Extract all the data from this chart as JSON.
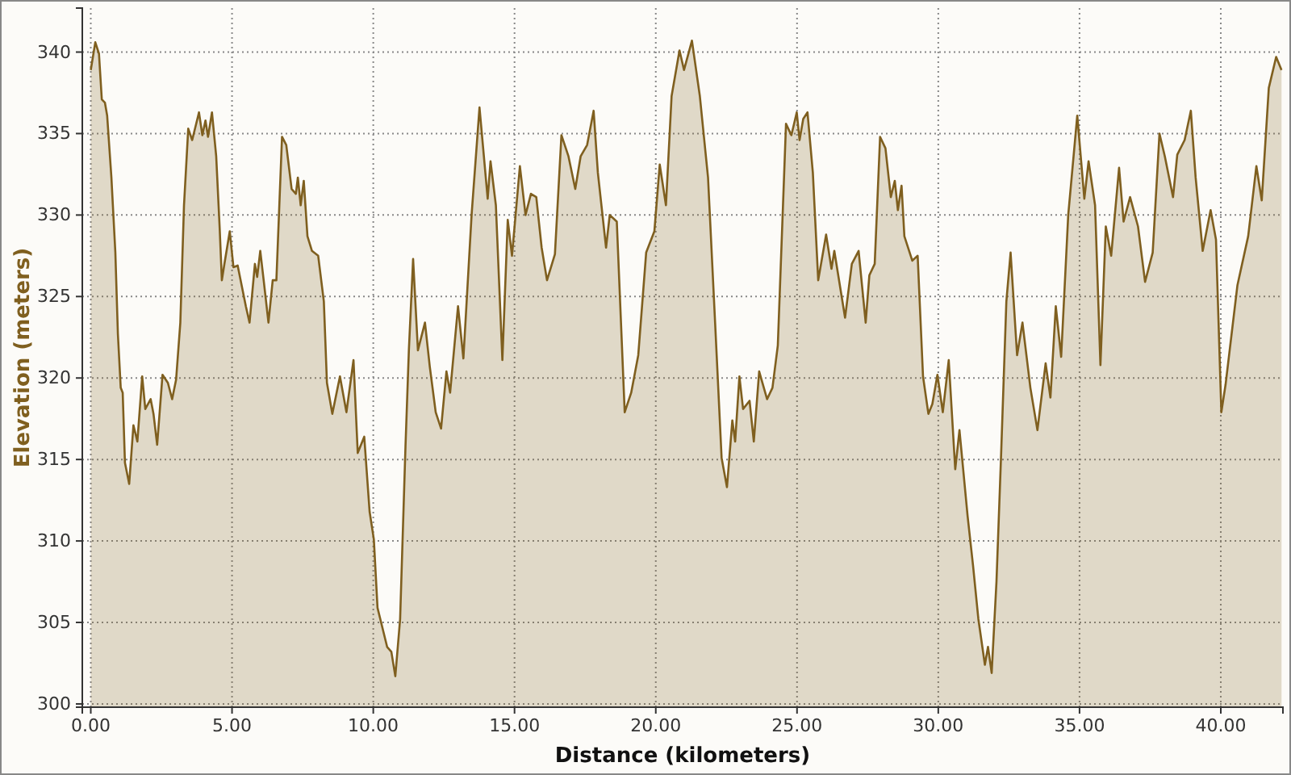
{
  "chart_data": {
    "type": "area",
    "xlabel": "Distance (kilometers)",
    "ylabel": "Elevation (meters)",
    "xlim": [
      -0.3,
      42.2
    ],
    "ylim": [
      299.8,
      342.7
    ],
    "xticks": [
      {
        "value": 0,
        "label": "0.00"
      },
      {
        "value": 5,
        "label": "5.00"
      },
      {
        "value": 10,
        "label": "10.00"
      },
      {
        "value": 15,
        "label": "15.00"
      },
      {
        "value": 20,
        "label": "20.00"
      },
      {
        "value": 25,
        "label": "25.00"
      },
      {
        "value": 30,
        "label": "30.00"
      },
      {
        "value": 35,
        "label": "35.00"
      },
      {
        "value": 40,
        "label": "40.00"
      }
    ],
    "yticks": [
      300,
      305,
      310,
      315,
      320,
      325,
      330,
      335,
      340
    ],
    "grid": true,
    "line_style": "solid",
    "series": [
      {
        "color": "#7f5f1f",
        "x": [
          0.0,
          0.16,
          0.29,
          0.39,
          0.5,
          0.58,
          0.73,
          0.87,
          0.96,
          1.06,
          1.13,
          1.21,
          1.36,
          1.51,
          1.65,
          1.82,
          1.93,
          2.12,
          2.22,
          2.35,
          2.54,
          2.73,
          2.88,
          3.02,
          3.17,
          3.3,
          3.45,
          3.59,
          3.83,
          3.95,
          4.06,
          4.15,
          4.29,
          4.44,
          4.56,
          4.64,
          4.73,
          4.92,
          5.05,
          5.2,
          5.49,
          5.62,
          5.81,
          5.89,
          6.0,
          6.12,
          6.29,
          6.44,
          6.57,
          6.77,
          6.92,
          7.11,
          7.26,
          7.33,
          7.43,
          7.54,
          7.67,
          7.83,
          8.05,
          8.25,
          8.36,
          8.55,
          8.82,
          9.05,
          9.3,
          9.45,
          9.68,
          9.87,
          10.02,
          10.15,
          10.49,
          10.64,
          10.78,
          10.95,
          11.14,
          11.26,
          11.41,
          11.58,
          11.83,
          12.0,
          12.21,
          12.4,
          12.59,
          12.72,
          13.0,
          13.19,
          13.48,
          13.76,
          14.05,
          14.15,
          14.34,
          14.57,
          14.76,
          14.91,
          15.19,
          15.39,
          15.58,
          15.77,
          15.96,
          16.15,
          16.43,
          16.66,
          16.91,
          17.15,
          17.34,
          17.57,
          17.8,
          17.95,
          18.24,
          18.37,
          18.62,
          18.9,
          19.13,
          19.38,
          19.66,
          19.95,
          20.14,
          20.36,
          20.56,
          20.84,
          21.0,
          21.28,
          21.56,
          21.85,
          22.1,
          22.33,
          22.52,
          22.71,
          22.81,
          22.96,
          23.09,
          23.32,
          23.47,
          23.66,
          23.94,
          24.13,
          24.32,
          24.61,
          24.8,
          24.99,
          25.09,
          25.22,
          25.37,
          25.56,
          25.75,
          26.03,
          26.22,
          26.32,
          26.7,
          26.94,
          27.18,
          27.43,
          27.56,
          27.75,
          27.94,
          28.13,
          28.32,
          28.46,
          28.57,
          28.7,
          28.8,
          29.08,
          29.27,
          29.46,
          29.65,
          29.79,
          29.97,
          30.16,
          30.37,
          30.6,
          30.75,
          31.04,
          31.23,
          31.42,
          31.65,
          31.76,
          31.89,
          32.06,
          32.22,
          32.41,
          32.56,
          32.79,
          32.98,
          33.26,
          33.51,
          33.8,
          33.97,
          34.16,
          34.35,
          34.6,
          34.92,
          35.17,
          35.32,
          35.55,
          35.74,
          35.93,
          36.12,
          36.4,
          36.56,
          36.79,
          37.07,
          37.32,
          37.59,
          37.83,
          38.02,
          38.31,
          38.46,
          38.72,
          38.94,
          39.11,
          39.36,
          39.64,
          39.83,
          40.02,
          40.17,
          40.59,
          40.97,
          41.26,
          41.45,
          41.7,
          41.96,
          42.15
        ],
        "values": [
          338.9,
          340.6,
          339.9,
          337.1,
          336.9,
          336.1,
          332.3,
          327.7,
          322.7,
          319.4,
          319.1,
          314.8,
          313.5,
          317.1,
          316.1,
          320.1,
          318.1,
          318.7,
          317.8,
          315.9,
          320.2,
          319.7,
          318.7,
          319.9,
          323.4,
          330.6,
          335.3,
          334.6,
          336.3,
          334.9,
          335.8,
          334.8,
          336.3,
          333.6,
          329.3,
          326.0,
          327.0,
          329.0,
          326.8,
          326.9,
          324.4,
          323.4,
          327.0,
          326.2,
          327.8,
          326.0,
          323.4,
          326.0,
          326.0,
          334.8,
          334.3,
          331.6,
          331.3,
          332.3,
          330.6,
          332.1,
          328.7,
          327.8,
          327.5,
          324.7,
          319.7,
          317.8,
          320.1,
          317.9,
          321.1,
          315.4,
          316.4,
          311.8,
          310.1,
          305.9,
          303.5,
          303.2,
          301.7,
          305.2,
          315.8,
          321.7,
          327.3,
          321.7,
          323.4,
          320.7,
          317.9,
          316.9,
          320.4,
          319.1,
          324.4,
          321.2,
          330.0,
          336.6,
          331.0,
          333.3,
          330.6,
          321.1,
          329.7,
          327.5,
          333.0,
          330.0,
          331.3,
          331.1,
          328.0,
          326.0,
          327.6,
          334.9,
          333.6,
          331.6,
          333.6,
          334.3,
          336.4,
          332.6,
          328.0,
          330.0,
          329.6,
          317.9,
          319.1,
          321.4,
          327.7,
          329.0,
          333.1,
          330.6,
          337.3,
          340.1,
          338.9,
          340.7,
          337.3,
          332.3,
          323.4,
          315.1,
          313.3,
          317.4,
          316.1,
          320.1,
          318.1,
          318.6,
          316.1,
          320.4,
          318.7,
          319.4,
          322.0,
          335.6,
          334.9,
          336.3,
          334.6,
          335.9,
          336.3,
          332.6,
          326.0,
          328.8,
          326.7,
          327.8,
          323.7,
          327.0,
          327.8,
          323.4,
          326.3,
          327.0,
          334.8,
          334.1,
          331.1,
          332.1,
          330.3,
          331.8,
          328.7,
          327.2,
          327.5,
          320.1,
          317.8,
          318.4,
          320.2,
          317.9,
          321.1,
          314.4,
          316.8,
          311.5,
          308.5,
          305.2,
          302.4,
          303.5,
          301.9,
          307.5,
          315.1,
          324.7,
          327.7,
          321.4,
          323.4,
          319.4,
          316.8,
          320.9,
          318.8,
          324.4,
          321.3,
          330.0,
          336.1,
          331.0,
          333.3,
          330.6,
          320.8,
          329.3,
          327.5,
          332.9,
          329.6,
          331.1,
          329.3,
          325.9,
          327.7,
          335.0,
          333.6,
          331.1,
          333.7,
          334.6,
          336.4,
          332.3,
          327.8,
          330.3,
          328.5,
          317.9,
          319.6,
          325.7,
          328.7,
          333.0,
          330.9,
          337.8,
          339.7,
          338.9
        ]
      }
    ]
  }
}
